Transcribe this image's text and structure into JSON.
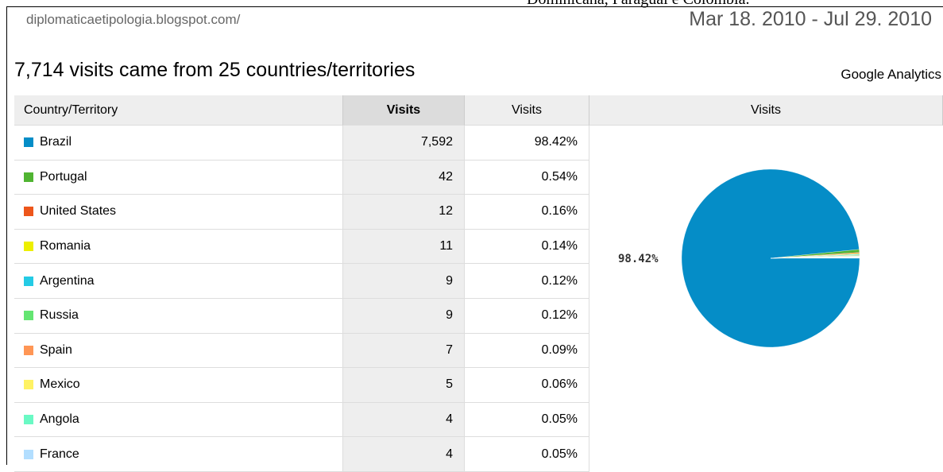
{
  "header": {
    "cut_text": "Dominicana, Paraguai e Colombia.",
    "url": "diplomaticaetipologia.blogspot.com/",
    "date_range": "Mar 18. 2010 - Jul 29. 2010"
  },
  "title": "7,714 visits came from 25 countries/territories",
  "brand": "Google Analytics",
  "table": {
    "columns": [
      "Country/Territory",
      "Visits",
      "Visits",
      "Visits"
    ],
    "rows": [
      [
        "7,592",
        "98.42%"
      ],
      [
        "42",
        "0.54%"
      ],
      [
        "12",
        "0.16%"
      ],
      [
        "11",
        "0.14%"
      ],
      [
        "9",
        "0.12%"
      ],
      [
        "9",
        "0.12%"
      ],
      [
        "7",
        "0.09%"
      ],
      [
        "5",
        "0.06%"
      ],
      [
        "4",
        "0.05%"
      ],
      [
        "4",
        "0.05%"
      ]
    ]
  },
  "chart_data": {
    "type": "pie",
    "categories": [
      "Brazil",
      "Portugal",
      "United States",
      "Romania",
      "Argentina",
      "Russia",
      "Spain",
      "Mexico",
      "Angola",
      "France"
    ],
    "values": [
      98.42,
      0.54,
      0.16,
      0.14,
      0.12,
      0.12,
      0.09,
      0.06,
      0.05,
      0.05
    ],
    "value_labels": [
      "98.42%"
    ],
    "colors": [
      "#058dc7",
      "#50b432",
      "#ed561b",
      "#edef00",
      "#24cbe5",
      "#64e572",
      "#ff9655",
      "#fff263",
      "#6af9c4",
      "#b2deff"
    ]
  }
}
